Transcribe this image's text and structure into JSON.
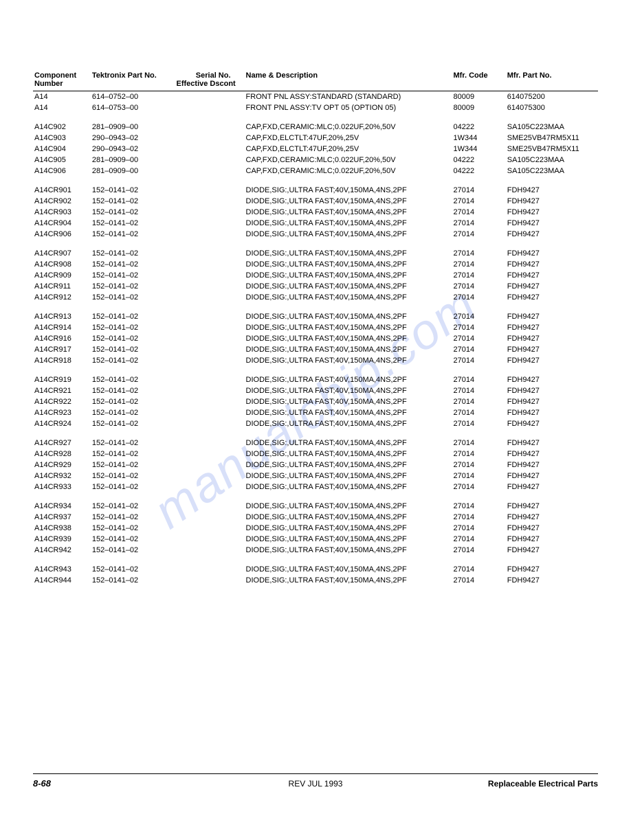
{
  "watermark": "manualchip.com",
  "headers": {
    "component": "Component Number",
    "tektronix": "Tektronix Part No.",
    "serial": "Serial No.",
    "serial_sub": "Effective   Dscont",
    "name_desc": "Name & Description",
    "mfr_code": "Mfr. Code",
    "mfr_part": "Mfr. Part No."
  },
  "rows": [
    {
      "comp": "A14",
      "tek": "614–0752–00",
      "serial": "",
      "desc": "FRONT PNL ASSY:STANDARD (STANDARD)",
      "mfr": "80009",
      "mfrpart": "614075200",
      "first": true
    },
    {
      "comp": "A14",
      "tek": "614–0753–00",
      "serial": "",
      "desc": "FRONT PNL ASSY:TV OPT 05 (OPTION 05)",
      "mfr": "80009",
      "mfrpart": "614075300"
    },
    {
      "spacer": true
    },
    {
      "comp": "A14C902",
      "tek": "281–0909–00",
      "serial": "",
      "desc": "CAP,FXD,CERAMIC:MLC;0.022UF,20%,50V",
      "mfr": "04222",
      "mfrpart": "SA105C223MAA"
    },
    {
      "comp": "A14C903",
      "tek": "290–0943–02",
      "serial": "",
      "desc": "CAP,FXD,ELCTLT:47UF,20%,25V",
      "mfr": "1W344",
      "mfrpart": "SME25VB47RM5X11"
    },
    {
      "comp": "A14C904",
      "tek": "290–0943–02",
      "serial": "",
      "desc": "CAP,FXD,ELCTLT:47UF,20%,25V",
      "mfr": "1W344",
      "mfrpart": "SME25VB47RM5X11"
    },
    {
      "comp": "A14C905",
      "tek": "281–0909–00",
      "serial": "",
      "desc": "CAP,FXD,CERAMIC:MLC;0.022UF,20%,50V",
      "mfr": "04222",
      "mfrpart": "SA105C223MAA"
    },
    {
      "comp": "A14C906",
      "tek": "281–0909–00",
      "serial": "",
      "desc": "CAP,FXD,CERAMIC:MLC;0.022UF,20%,50V",
      "mfr": "04222",
      "mfrpart": "SA105C223MAA"
    },
    {
      "spacer": true
    },
    {
      "comp": "A14CR901",
      "tek": "152–0141–02",
      "serial": "",
      "desc": "DIODE,SIG:,ULTRA FAST;40V,150MA,4NS,2PF",
      "mfr": "27014",
      "mfrpart": "FDH9427"
    },
    {
      "comp": "A14CR902",
      "tek": "152–0141–02",
      "serial": "",
      "desc": "DIODE,SIG:,ULTRA FAST;40V,150MA,4NS,2PF",
      "mfr": "27014",
      "mfrpart": "FDH9427"
    },
    {
      "comp": "A14CR903",
      "tek": "152–0141–02",
      "serial": "",
      "desc": "DIODE,SIG:,ULTRA FAST;40V,150MA,4NS,2PF",
      "mfr": "27014",
      "mfrpart": "FDH9427"
    },
    {
      "comp": "A14CR904",
      "tek": "152–0141–02",
      "serial": "",
      "desc": "DIODE,SIG:,ULTRA FAST;40V,150MA,4NS,2PF",
      "mfr": "27014",
      "mfrpart": "FDH9427"
    },
    {
      "comp": "A14CR906",
      "tek": "152–0141–02",
      "serial": "",
      "desc": "DIODE,SIG:,ULTRA FAST;40V,150MA,4NS,2PF",
      "mfr": "27014",
      "mfrpart": "FDH9427"
    },
    {
      "spacer": true
    },
    {
      "comp": "A14CR907",
      "tek": "152–0141–02",
      "serial": "",
      "desc": "DIODE,SIG:,ULTRA FAST;40V,150MA,4NS,2PF",
      "mfr": "27014",
      "mfrpart": "FDH9427"
    },
    {
      "comp": "A14CR908",
      "tek": "152–0141–02",
      "serial": "",
      "desc": "DIODE,SIG:,ULTRA FAST;40V,150MA,4NS,2PF",
      "mfr": "27014",
      "mfrpart": "FDH9427"
    },
    {
      "comp": "A14CR909",
      "tek": "152–0141–02",
      "serial": "",
      "desc": "DIODE,SIG:,ULTRA FAST;40V,150MA,4NS,2PF",
      "mfr": "27014",
      "mfrpart": "FDH9427"
    },
    {
      "comp": "A14CR911",
      "tek": "152–0141–02",
      "serial": "",
      "desc": "DIODE,SIG:,ULTRA FAST;40V,150MA,4NS,2PF",
      "mfr": "27014",
      "mfrpart": "FDH9427"
    },
    {
      "comp": "A14CR912",
      "tek": "152–0141–02",
      "serial": "",
      "desc": "DIODE,SIG:,ULTRA FAST;40V,150MA,4NS,2PF",
      "mfr": "27014",
      "mfrpart": "FDH9427"
    },
    {
      "spacer": true
    },
    {
      "comp": "A14CR913",
      "tek": "152–0141–02",
      "serial": "",
      "desc": "DIODE,SIG:,ULTRA FAST;40V,150MA,4NS,2PF",
      "mfr": "27014",
      "mfrpart": "FDH9427"
    },
    {
      "comp": "A14CR914",
      "tek": "152–0141–02",
      "serial": "",
      "desc": "DIODE,SIG:,ULTRA FAST;40V,150MA,4NS,2PF",
      "mfr": "27014",
      "mfrpart": "FDH9427"
    },
    {
      "comp": "A14CR916",
      "tek": "152–0141–02",
      "serial": "",
      "desc": "DIODE,SIG:,ULTRA FAST;40V,150MA,4NS,2PF",
      "mfr": "27014",
      "mfrpart": "FDH9427"
    },
    {
      "comp": "A14CR917",
      "tek": "152–0141–02",
      "serial": "",
      "desc": "DIODE,SIG:,ULTRA FAST;40V,150MA,4NS,2PF",
      "mfr": "27014",
      "mfrpart": "FDH9427"
    },
    {
      "comp": "A14CR918",
      "tek": "152–0141–02",
      "serial": "",
      "desc": "DIODE,SIG:,ULTRA FAST;40V,150MA,4NS,2PF",
      "mfr": "27014",
      "mfrpart": "FDH9427"
    },
    {
      "spacer": true
    },
    {
      "comp": "A14CR919",
      "tek": "152–0141–02",
      "serial": "",
      "desc": "DIODE,SIG:,ULTRA FAST;40V,150MA,4NS,2PF",
      "mfr": "27014",
      "mfrpart": "FDH9427"
    },
    {
      "comp": "A14CR921",
      "tek": "152–0141–02",
      "serial": "",
      "desc": "DIODE,SIG:,ULTRA FAST;40V,150MA,4NS,2PF",
      "mfr": "27014",
      "mfrpart": "FDH9427"
    },
    {
      "comp": "A14CR922",
      "tek": "152–0141–02",
      "serial": "",
      "desc": "DIODE,SIG:,ULTRA FAST;40V,150MA,4NS,2PF",
      "mfr": "27014",
      "mfrpart": "FDH9427"
    },
    {
      "comp": "A14CR923",
      "tek": "152–0141–02",
      "serial": "",
      "desc": "DIODE,SIG:,ULTRA FAST;40V,150MA,4NS,2PF",
      "mfr": "27014",
      "mfrpart": "FDH9427"
    },
    {
      "comp": "A14CR924",
      "tek": "152–0141–02",
      "serial": "",
      "desc": "DIODE,SIG:,ULTRA FAST;40V,150MA,4NS,2PF",
      "mfr": "27014",
      "mfrpart": "FDH9427"
    },
    {
      "spacer": true
    },
    {
      "comp": "A14CR927",
      "tek": "152–0141–02",
      "serial": "",
      "desc": "DIODE,SIG:,ULTRA FAST;40V,150MA,4NS,2PF",
      "mfr": "27014",
      "mfrpart": "FDH9427"
    },
    {
      "comp": "A14CR928",
      "tek": "152–0141–02",
      "serial": "",
      "desc": "DIODE,SIG:,ULTRA FAST;40V,150MA,4NS,2PF",
      "mfr": "27014",
      "mfrpart": "FDH9427"
    },
    {
      "comp": "A14CR929",
      "tek": "152–0141–02",
      "serial": "",
      "desc": "DIODE,SIG:,ULTRA FAST;40V,150MA,4NS,2PF",
      "mfr": "27014",
      "mfrpart": "FDH9427"
    },
    {
      "comp": "A14CR932",
      "tek": "152–0141–02",
      "serial": "",
      "desc": "DIODE,SIG:,ULTRA FAST;40V,150MA,4NS,2PF",
      "mfr": "27014",
      "mfrpart": "FDH9427"
    },
    {
      "comp": "A14CR933",
      "tek": "152–0141–02",
      "serial": "",
      "desc": "DIODE,SIG:,ULTRA FAST;40V,150MA,4NS,2PF",
      "mfr": "27014",
      "mfrpart": "FDH9427"
    },
    {
      "spacer": true
    },
    {
      "comp": "A14CR934",
      "tek": "152–0141–02",
      "serial": "",
      "desc": "DIODE,SIG:,ULTRA FAST;40V,150MA,4NS,2PF",
      "mfr": "27014",
      "mfrpart": "FDH9427"
    },
    {
      "comp": "A14CR937",
      "tek": "152–0141–02",
      "serial": "",
      "desc": "DIODE,SIG:,ULTRA FAST;40V,150MA,4NS,2PF",
      "mfr": "27014",
      "mfrpart": "FDH9427"
    },
    {
      "comp": "A14CR938",
      "tek": "152–0141–02",
      "serial": "",
      "desc": "DIODE,SIG:,ULTRA FAST;40V,150MA,4NS,2PF",
      "mfr": "27014",
      "mfrpart": "FDH9427"
    },
    {
      "comp": "A14CR939",
      "tek": "152–0141–02",
      "serial": "",
      "desc": "DIODE,SIG:,ULTRA FAST;40V,150MA,4NS,2PF",
      "mfr": "27014",
      "mfrpart": "FDH9427"
    },
    {
      "comp": "A14CR942",
      "tek": "152–0141–02",
      "serial": "",
      "desc": "DIODE,SIG:,ULTRA FAST;40V,150MA,4NS,2PF",
      "mfr": "27014",
      "mfrpart": "FDH9427"
    },
    {
      "spacer": true
    },
    {
      "comp": "A14CR943",
      "tek": "152–0141–02",
      "serial": "",
      "desc": "DIODE,SIG:,ULTRA FAST;40V,150MA,4NS,2PF",
      "mfr": "27014",
      "mfrpart": "FDH9427"
    },
    {
      "comp": "A14CR944",
      "tek": "152–0141–02",
      "serial": "",
      "desc": "DIODE,SIG:,ULTRA FAST;40V,150MA,4NS,2PF",
      "mfr": "27014",
      "mfrpart": "FDH9427"
    }
  ],
  "footer": {
    "page": "8-68",
    "rev": "REV JUL 1993",
    "section": "Replaceable Electrical Parts"
  }
}
